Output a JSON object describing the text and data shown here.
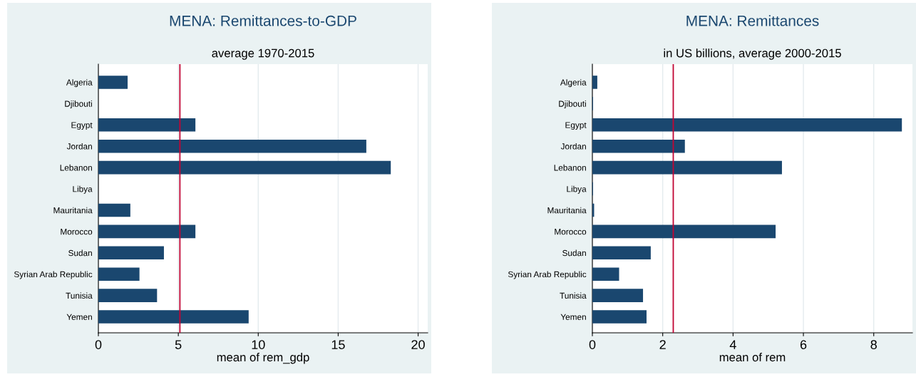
{
  "chart_data": [
    {
      "type": "bar",
      "orientation": "horizontal",
      "title": "MENA: Remittances-to-GDP",
      "subtitle": "average 1970-2015",
      "xlabel": "mean of rem_gdp",
      "categories": [
        "Algeria",
        "Djibouti",
        "Egypt",
        "Jordan",
        "Lebanon",
        "Libya",
        "Mauritania",
        "Morocco",
        "Sudan",
        "Syrian Arab Republic",
        "Tunisia",
        "Yemen"
      ],
      "series": [
        {
          "color": "#1a476f",
          "values": [
            1.83,
            null,
            6.07,
            16.76,
            18.29,
            null,
            2.0,
            6.07,
            4.1,
            2.57,
            3.67,
            9.4
          ]
        }
      ],
      "xlim": [
        0,
        20.6
      ],
      "xticks": [
        0,
        5,
        10,
        15,
        20
      ],
      "grid": "x",
      "ref_lines": [
        {
          "axis": "x",
          "value": 5.1,
          "color": "#c10534"
        }
      ]
    },
    {
      "type": "bar",
      "orientation": "horizontal",
      "title": "MENA: Remittances",
      "subtitle": "in US billions, average 2000-2015",
      "xlabel": "mean of rem",
      "categories": [
        "Algeria",
        "Djibouti",
        "Egypt",
        "Jordan",
        "Lebanon",
        "Libya",
        "Mauritania",
        "Morocco",
        "Sudan",
        "Syrian Arab Republic",
        "Tunisia",
        "Yemen"
      ],
      "series": [
        {
          "color": "#1a476f",
          "values": [
            0.14,
            0.02,
            8.8,
            2.63,
            5.39,
            0.02,
            0.05,
            5.21,
            1.66,
            0.76,
            1.44,
            1.54
          ]
        }
      ],
      "xlim": [
        0,
        9.1
      ],
      "xticks": [
        0,
        2,
        4,
        6,
        8
      ],
      "grid": "x",
      "ref_lines": [
        {
          "axis": "x",
          "value": 2.3,
          "color": "#c10534"
        }
      ]
    }
  ]
}
